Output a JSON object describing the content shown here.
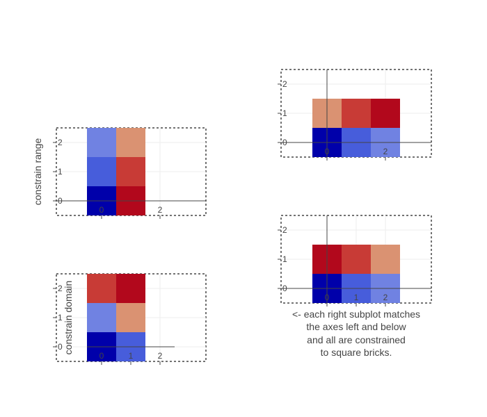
{
  "chart_data": [
    {
      "id": "top-left",
      "type": "heatmap",
      "x": [
        0,
        1
      ],
      "y": [
        0,
        1,
        2
      ],
      "z": [
        [
          0,
          9
        ],
        [
          2,
          8
        ],
        [
          3,
          6
        ]
      ],
      "zlim": [
        0,
        9
      ],
      "colorscale": [
        "#0000aa",
        "#3f55da",
        "#8899e6",
        "#dba986",
        "#d9634a",
        "#b2081c"
      ],
      "xticks": [
        0,
        2
      ],
      "yticks": [
        0,
        1,
        2
      ],
      "ylabel": "constrain range"
    },
    {
      "id": "bottom-left",
      "type": "heatmap",
      "x": [
        0,
        1
      ],
      "y": [
        0,
        1,
        2
      ],
      "z": [
        [
          0,
          2
        ],
        [
          3,
          6
        ],
        [
          8,
          9
        ]
      ],
      "zlim": [
        0,
        9
      ],
      "colorscale": [
        "#0000aa",
        "#3f55da",
        "#8899e6",
        "#dba986",
        "#d9634a",
        "#b2081c"
      ],
      "xticks": [
        0,
        1,
        2
      ],
      "yticks": [
        0,
        1,
        2
      ],
      "ylabel": "constrain domain"
    },
    {
      "id": "top-right",
      "type": "heatmap",
      "x": [
        0,
        1,
        2
      ],
      "y": [
        0,
        1
      ],
      "z": [
        [
          0,
          2,
          3
        ],
        [
          6,
          8,
          9
        ]
      ],
      "zlim": [
        0,
        9
      ],
      "colorscale": [
        "#0000aa",
        "#3f55da",
        "#8899e6",
        "#dba986",
        "#d9634a",
        "#b2081c"
      ],
      "xticks": [
        0,
        2
      ],
      "yticks": [
        0,
        1,
        2
      ],
      "ylabel": ""
    },
    {
      "id": "bottom-right",
      "type": "heatmap",
      "x": [
        0,
        1,
        2
      ],
      "y": [
        0,
        1
      ],
      "z": [
        [
          0,
          2,
          3
        ],
        [
          9,
          8,
          6
        ]
      ],
      "zlim": [
        0,
        9
      ],
      "colorscale": [
        "#0000aa",
        "#3f55da",
        "#8899e6",
        "#dba986",
        "#d9634a",
        "#b2081c"
      ],
      "xticks": [
        0,
        1,
        2
      ],
      "yticks": [
        0,
        1,
        2
      ],
      "ylabel": ""
    }
  ],
  "annotation": {
    "lines": [
      "<- each right subplot matches",
      "the axes left and below",
      "and all are constrained",
      "to square bricks."
    ]
  }
}
